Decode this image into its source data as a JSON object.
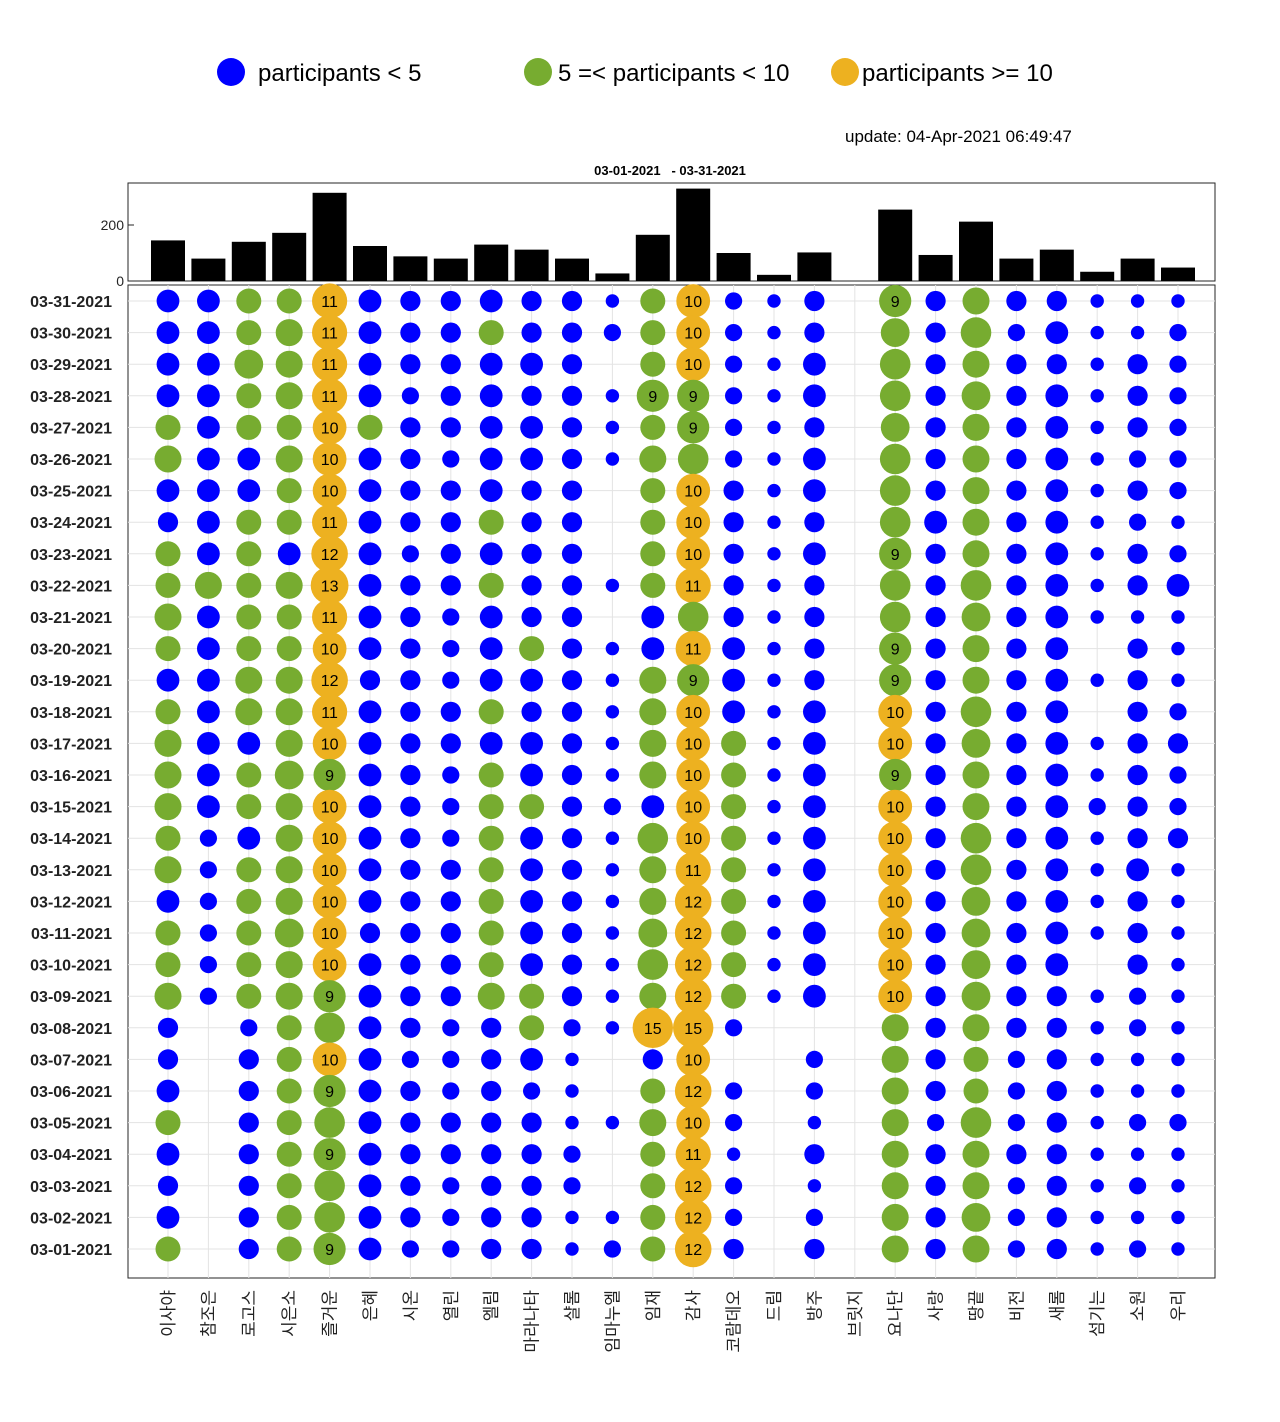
{
  "legend": [
    {
      "label": "participants < 5",
      "color": "#0000ff"
    },
    {
      "label": "5 =< participants < 10",
      "color": "#77ac30"
    },
    {
      "label": "participants >= 10",
      "color": "#edb120"
    }
  ],
  "update_text": "update: 04-Apr-2021 06:49:47",
  "title": "03-01-2021   - 03-31-2021",
  "chart_data": {
    "type": "bubble-matrix",
    "title": "03-01-2021   - 03-31-2021",
    "thresholds": {
      "low_max_exclusive": 5,
      "mid_max_exclusive": 10
    },
    "colors": {
      "low": "#0000ff",
      "mid": "#77ac30",
      "high": "#edb120"
    },
    "categories": [
      "이사야",
      "참조은",
      "로고스",
      "시은소",
      "즐거운",
      "은혜",
      "시온",
      "열린",
      "엘림",
      "마라나타",
      "샬롬",
      "임마누엘",
      "임재",
      "감사",
      "코람데오",
      "드림",
      "방주",
      "브릿지",
      "요나단",
      "사랑",
      "땅끝",
      "비전",
      "새롬",
      "섬기는",
      "소원",
      "우리"
    ],
    "dates": [
      "03-31-2021",
      "03-30-2021",
      "03-29-2021",
      "03-28-2021",
      "03-27-2021",
      "03-26-2021",
      "03-25-2021",
      "03-24-2021",
      "03-23-2021",
      "03-22-2021",
      "03-21-2021",
      "03-20-2021",
      "03-19-2021",
      "03-18-2021",
      "03-17-2021",
      "03-16-2021",
      "03-15-2021",
      "03-14-2021",
      "03-13-2021",
      "03-12-2021",
      "03-11-2021",
      "03-10-2021",
      "03-09-2021",
      "03-08-2021",
      "03-07-2021",
      "03-06-2021",
      "03-05-2021",
      "03-04-2021",
      "03-03-2021",
      "03-02-2021",
      "03-01-2021"
    ],
    "bar_totals": [
      145,
      80,
      140,
      172,
      315,
      125,
      88,
      80,
      130,
      112,
      80,
      27,
      165,
      330,
      100,
      22,
      102,
      0,
      255,
      93,
      212,
      80,
      112,
      33,
      80,
      48
    ],
    "bar_yticks": [
      0,
      200
    ],
    "bar_ylim": [
      0,
      350
    ],
    "values": [
      [
        4,
        4,
        5,
        5,
        11,
        4,
        3,
        3,
        4,
        3,
        3,
        1,
        5,
        10,
        2,
        1,
        3,
        0,
        9,
        3,
        6,
        3,
        3,
        1,
        1,
        1
      ],
      [
        4,
        4,
        5,
        6,
        11,
        4,
        3,
        3,
        5,
        3,
        3,
        2,
        5,
        10,
        2,
        1,
        3,
        0,
        7,
        3,
        8,
        2,
        4,
        1,
        1,
        2
      ],
      [
        4,
        4,
        7,
        6,
        11,
        4,
        3,
        3,
        4,
        4,
        3,
        0,
        5,
        10,
        2,
        1,
        4,
        0,
        8,
        3,
        6,
        3,
        3,
        1,
        3,
        2
      ],
      [
        4,
        4,
        5,
        6,
        11,
        4,
        2,
        3,
        4,
        3,
        3,
        1,
        9,
        9,
        2,
        1,
        4,
        0,
        8,
        3,
        7,
        3,
        4,
        1,
        3,
        2
      ],
      [
        5,
        4,
        5,
        5,
        10,
        5,
        3,
        3,
        4,
        4,
        3,
        1,
        5,
        9,
        2,
        1,
        3,
        0,
        7,
        3,
        6,
        3,
        4,
        1,
        3,
        2
      ],
      [
        6,
        4,
        4,
        6,
        10,
        4,
        3,
        2,
        4,
        4,
        3,
        1,
        6,
        8,
        2,
        1,
        4,
        0,
        8,
        3,
        6,
        3,
        4,
        1,
        2,
        2
      ],
      [
        4,
        4,
        4,
        5,
        10,
        4,
        3,
        3,
        4,
        3,
        3,
        0,
        5,
        10,
        3,
        1,
        4,
        0,
        8,
        3,
        6,
        3,
        4,
        1,
        3,
        2
      ],
      [
        3,
        4,
        5,
        5,
        11,
        4,
        3,
        3,
        5,
        3,
        3,
        0,
        5,
        10,
        3,
        1,
        3,
        0,
        8,
        4,
        6,
        3,
        4,
        1,
        2,
        1
      ],
      [
        5,
        4,
        5,
        4,
        12,
        4,
        2,
        3,
        4,
        3,
        3,
        0,
        5,
        10,
        3,
        1,
        4,
        0,
        9,
        3,
        6,
        3,
        4,
        1,
        3,
        2
      ],
      [
        5,
        6,
        5,
        6,
        13,
        4,
        3,
        3,
        5,
        3,
        3,
        1,
        5,
        11,
        3,
        1,
        3,
        0,
        8,
        3,
        8,
        3,
        4,
        1,
        3,
        4
      ],
      [
        6,
        4,
        5,
        5,
        11,
        4,
        3,
        2,
        4,
        3,
        3,
        0,
        4,
        8,
        3,
        1,
        3,
        0,
        8,
        3,
        7,
        3,
        4,
        1,
        1,
        1
      ],
      [
        5,
        4,
        5,
        5,
        10,
        4,
        3,
        2,
        4,
        5,
        3,
        1,
        4,
        11,
        4,
        1,
        3,
        0,
        9,
        3,
        6,
        3,
        4,
        0,
        3,
        1
      ],
      [
        4,
        4,
        6,
        6,
        12,
        3,
        3,
        2,
        4,
        4,
        3,
        1,
        6,
        9,
        4,
        1,
        3,
        0,
        9,
        3,
        6,
        3,
        4,
        1,
        3,
        1
      ],
      [
        5,
        4,
        6,
        6,
        11,
        4,
        3,
        3,
        5,
        3,
        3,
        1,
        6,
        10,
        4,
        1,
        4,
        0,
        10,
        3,
        8,
        3,
        4,
        0,
        3,
        2
      ],
      [
        6,
        4,
        4,
        6,
        10,
        4,
        3,
        3,
        4,
        4,
        3,
        1,
        6,
        10,
        5,
        1,
        4,
        0,
        10,
        3,
        7,
        3,
        4,
        1,
        3,
        3
      ],
      [
        6,
        4,
        5,
        7,
        9,
        4,
        3,
        2,
        5,
        4,
        3,
        1,
        6,
        10,
        5,
        1,
        4,
        0,
        9,
        3,
        6,
        3,
        4,
        1,
        3,
        2
      ],
      [
        6,
        4,
        5,
        6,
        10,
        4,
        3,
        2,
        5,
        5,
        3,
        2,
        4,
        10,
        5,
        1,
        4,
        0,
        10,
        3,
        6,
        3,
        4,
        2,
        3,
        2
      ],
      [
        5,
        2,
        4,
        6,
        10,
        4,
        3,
        2,
        5,
        4,
        3,
        1,
        8,
        10,
        5,
        1,
        4,
        0,
        10,
        3,
        8,
        3,
        4,
        1,
        3,
        3
      ],
      [
        6,
        2,
        5,
        6,
        10,
        4,
        3,
        3,
        5,
        4,
        3,
        1,
        6,
        11,
        5,
        1,
        4,
        0,
        10,
        3,
        8,
        3,
        4,
        1,
        4,
        1
      ],
      [
        4,
        2,
        5,
        6,
        10,
        4,
        3,
        3,
        5,
        4,
        3,
        1,
        6,
        12,
        5,
        1,
        4,
        0,
        10,
        3,
        7,
        3,
        4,
        1,
        3,
        1
      ],
      [
        5,
        2,
        5,
        7,
        10,
        3,
        3,
        3,
        5,
        4,
        3,
        1,
        7,
        12,
        5,
        1,
        4,
        0,
        10,
        3,
        7,
        3,
        4,
        1,
        3,
        1
      ],
      [
        5,
        2,
        5,
        6,
        10,
        4,
        3,
        3,
        5,
        4,
        3,
        1,
        8,
        12,
        5,
        1,
        4,
        0,
        10,
        3,
        7,
        3,
        4,
        0,
        3,
        1
      ],
      [
        6,
        2,
        5,
        6,
        9,
        4,
        3,
        3,
        6,
        5,
        3,
        1,
        6,
        12,
        5,
        1,
        4,
        0,
        10,
        3,
        7,
        3,
        3,
        1,
        2,
        1
      ],
      [
        3,
        0,
        2,
        5,
        8,
        4,
        3,
        2,
        3,
        5,
        2,
        1,
        15,
        15,
        2,
        0,
        0,
        0,
        6,
        3,
        6,
        3,
        3,
        1,
        2,
        1
      ],
      [
        3,
        0,
        3,
        5,
        10,
        4,
        2,
        2,
        3,
        4,
        1,
        0,
        3,
        10,
        0,
        0,
        2,
        0,
        6,
        3,
        5,
        2,
        3,
        1,
        1,
        1
      ],
      [
        4,
        0,
        3,
        5,
        9,
        4,
        3,
        2,
        3,
        2,
        1,
        0,
        5,
        12,
        2,
        0,
        2,
        0,
        6,
        3,
        5,
        2,
        3,
        1,
        1,
        1
      ],
      [
        5,
        0,
        3,
        5,
        8,
        4,
        3,
        3,
        3,
        3,
        1,
        1,
        6,
        10,
        2,
        0,
        1,
        0,
        6,
        2,
        8,
        2,
        3,
        1,
        2,
        2
      ],
      [
        4,
        0,
        3,
        5,
        9,
        4,
        3,
        3,
        3,
        3,
        2,
        0,
        5,
        11,
        1,
        0,
        3,
        0,
        6,
        3,
        6,
        3,
        3,
        1,
        1,
        1
      ],
      [
        3,
        0,
        3,
        5,
        8,
        4,
        3,
        2,
        3,
        3,
        2,
        0,
        5,
        12,
        2,
        0,
        1,
        0,
        6,
        3,
        6,
        2,
        3,
        1,
        2,
        1
      ],
      [
        4,
        0,
        3,
        5,
        8,
        4,
        3,
        2,
        3,
        3,
        1,
        1,
        5,
        12,
        2,
        0,
        2,
        0,
        6,
        3,
        7,
        2,
        3,
        1,
        1,
        1
      ],
      [
        5,
        0,
        3,
        5,
        9,
        4,
        2,
        2,
        3,
        3,
        1,
        2,
        5,
        12,
        3,
        0,
        3,
        0,
        6,
        3,
        6,
        2,
        3,
        1,
        2,
        1
      ]
    ],
    "xlabel": "",
    "ylabel": "",
    "grid": true
  }
}
